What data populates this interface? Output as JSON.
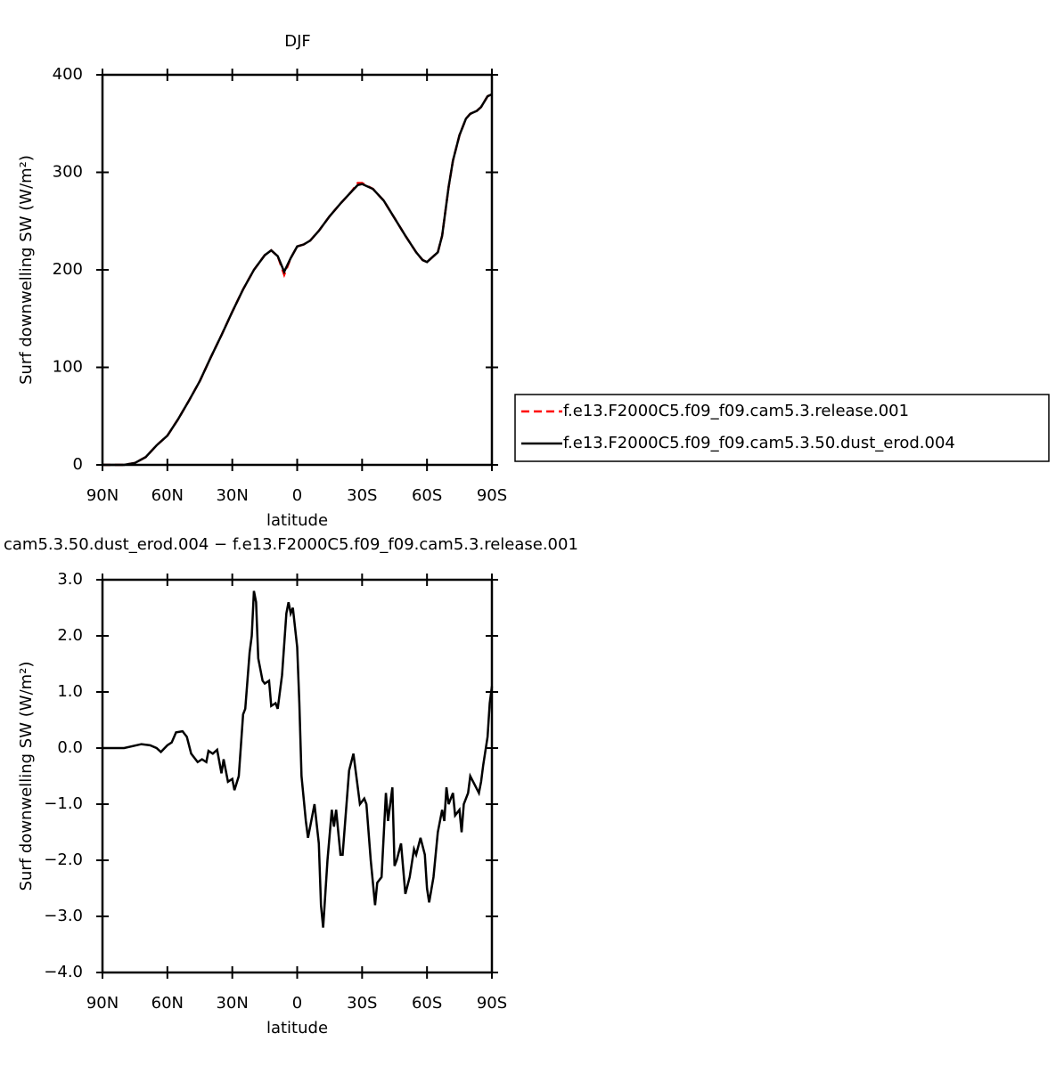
{
  "chart_data": [
    {
      "type": "line",
      "title": "DJF",
      "x_label": "latitude",
      "y_label": "Surf downwelling SW (W/m²)",
      "x": [
        90,
        85,
        80,
        75,
        70,
        65,
        60,
        55,
        50,
        45,
        40,
        35,
        30,
        25,
        20,
        15,
        12,
        9,
        6,
        3,
        0,
        -3,
        -6,
        -10,
        -15,
        -20,
        -25,
        -28,
        -30,
        -35,
        -40,
        -45,
        -50,
        -55,
        -58,
        -60,
        -65,
        -67,
        -70,
        -72,
        -75,
        -78,
        -80,
        -83,
        -85,
        -88,
        -90
      ],
      "series": [
        {
          "name": "f.e13.F2000C5.f09_f09.cam5.3.release.001",
          "color": "#ff0000",
          "dash": true,
          "values": [
            0,
            0,
            0,
            2,
            8,
            20,
            30,
            47,
            66,
            86,
            110,
            133,
            157,
            180,
            200,
            215,
            220,
            214,
            195,
            212,
            224,
            226,
            230,
            240,
            255,
            268,
            280,
            289,
            289,
            283,
            271,
            253,
            235,
            218,
            210,
            208,
            218,
            235,
            285,
            312,
            338,
            355,
            360,
            363,
            367,
            378,
            380
          ]
        },
        {
          "name": "f.e13.F2000C5.f09_f09.cam5.3.50.dust_erod.004",
          "color": "#000000",
          "dash": false,
          "values": [
            0,
            0,
            0,
            2,
            8,
            20,
            30,
            47,
            66,
            86,
            110,
            133,
            157,
            180,
            200,
            215,
            220,
            214,
            198,
            212,
            224,
            226,
            230,
            240,
            255,
            268,
            280,
            287,
            288,
            283,
            271,
            253,
            235,
            218,
            210,
            208,
            218,
            235,
            285,
            312,
            338,
            355,
            360,
            363,
            367,
            378,
            380
          ]
        }
      ],
      "xlim": [
        90,
        -90
      ],
      "xticks": [
        {
          "value": 90,
          "label": "90N"
        },
        {
          "value": 60,
          "label": "60N"
        },
        {
          "value": 30,
          "label": "30N"
        },
        0,
        {
          "value": -30,
          "label": "30S"
        },
        {
          "value": -60,
          "label": "60S"
        },
        {
          "value": -90,
          "label": "90S"
        }
      ],
      "ylim": [
        0,
        400
      ],
      "yticks": [
        0,
        100,
        200,
        300,
        400
      ],
      "legend": "right"
    },
    {
      "type": "line",
      "title": "cam5.3.50.dust_erod.004 − f.e13.F2000C5.f09_f09.cam5.3.release.001",
      "x_label": "latitude",
      "y_label": "Surf downwelling SW (W/m²)",
      "x": [
        90,
        80,
        72,
        68,
        65,
        63,
        60,
        58,
        56,
        53,
        51,
        49,
        46,
        44,
        42,
        41,
        39,
        37,
        35,
        34,
        32,
        30,
        29,
        27,
        25,
        24,
        22,
        21,
        20,
        19,
        18,
        16,
        15,
        13,
        12,
        10,
        9,
        7,
        5,
        4,
        3,
        2,
        0,
        -1,
        -2,
        -4,
        -5,
        -7,
        -8,
        -10,
        -11,
        -12,
        -14,
        -16,
        -17,
        -18,
        -20,
        -21,
        -23,
        -24,
        -26,
        -27,
        -29,
        -31,
        -32,
        -34,
        -36,
        -37,
        -39,
        -41,
        -42,
        -44,
        -45,
        -46,
        -48,
        -50,
        -52,
        -54,
        -55,
        -57,
        -59,
        -60,
        -61,
        -63,
        -65,
        -67,
        -68,
        -69,
        -70,
        -72,
        -73,
        -75,
        -76,
        -77,
        -79,
        -80,
        -82,
        -84,
        -85,
        -86,
        -88,
        -89,
        -90
      ],
      "values": [
        0,
        0,
        0.07,
        0.05,
        0,
        -0.07,
        0.05,
        0.1,
        0.28,
        0.3,
        0.2,
        -0.1,
        -0.25,
        -0.2,
        -0.25,
        -0.05,
        -0.1,
        -0.03,
        -0.45,
        -0.2,
        -0.6,
        -0.55,
        -0.75,
        -0.5,
        0.6,
        0.7,
        1.7,
        2.0,
        2.8,
        2.6,
        1.6,
        1.2,
        1.15,
        1.2,
        0.75,
        0.8,
        0.7,
        1.3,
        2.4,
        2.6,
        2.4,
        2.5,
        1.8,
        0.8,
        -0.5,
        -1.3,
        -1.6,
        -1.2,
        -1.0,
        -1.7,
        -2.8,
        -3.2,
        -2.0,
        -1.1,
        -1.4,
        -1.1,
        -1.9,
        -1.9,
        -0.9,
        -0.4,
        -0.1,
        -0.4,
        -1.0,
        -0.9,
        -1.0,
        -2.0,
        -2.8,
        -2.4,
        -2.3,
        -0.8,
        -1.3,
        -0.7,
        -2.1,
        -2.0,
        -1.7,
        -2.6,
        -2.3,
        -1.8,
        -1.9,
        -1.6,
        -1.9,
        -2.5,
        -2.75,
        -2.3,
        -1.5,
        -1.1,
        -1.3,
        -0.7,
        -1.0,
        -0.8,
        -1.2,
        -1.1,
        -1.5,
        -1.0,
        -0.8,
        -0.5,
        -0.65,
        -0.8,
        -0.6,
        -0.3,
        0.2,
        0.8,
        1.1
      ],
      "color": "#000000",
      "xlim": [
        90,
        -90
      ],
      "xticks": [
        {
          "value": 90,
          "label": "90N"
        },
        {
          "value": 60,
          "label": "60N"
        },
        {
          "value": 30,
          "label": "30N"
        },
        0,
        {
          "value": -30,
          "label": "30S"
        },
        {
          "value": -60,
          "label": "60S"
        },
        {
          "value": -90,
          "label": "90S"
        }
      ],
      "ylim": [
        -4,
        3
      ],
      "yticks": [
        {
          "value": -4,
          "label": "−4.0"
        },
        {
          "value": -3,
          "label": "−3.0"
        },
        {
          "value": -2,
          "label": "−2.0"
        },
        {
          "value": -1,
          "label": "−1.0"
        },
        {
          "value": 0,
          "label": "0.0"
        },
        {
          "value": 1,
          "label": "1.0"
        },
        {
          "value": 2,
          "label": "2.0"
        },
        {
          "value": 3,
          "label": "3.0"
        }
      ]
    }
  ]
}
